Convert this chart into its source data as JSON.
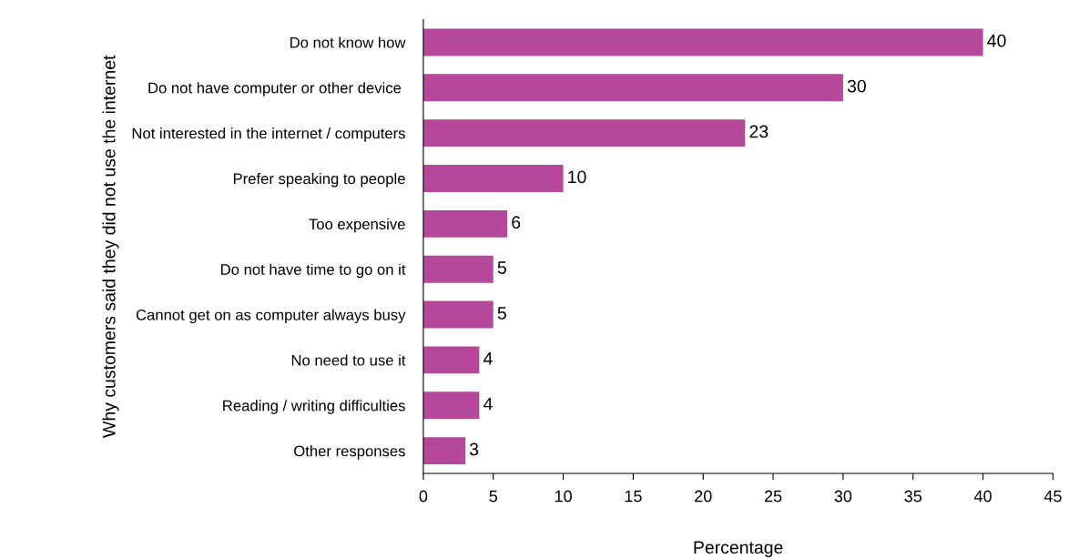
{
  "chart_data": {
    "type": "bar",
    "orientation": "horizontal",
    "xlabel": "Percentage",
    "ylabel": "Why customers said they did not use the internet",
    "categories": [
      "Do not know how",
      "Do not have computer or other device ",
      "Not interested in the internet / computers",
      "Prefer speaking to people",
      "Too expensive",
      "Do not have time to go on it",
      "Cannot get on as computer always busy",
      "No need to use it",
      "Reading / writing difficulties",
      "Other responses"
    ],
    "values": [
      40,
      30,
      23,
      10,
      6,
      5,
      5,
      4,
      4,
      3
    ],
    "color": "#b5489b",
    "data_labels": true,
    "grid": false,
    "legend": false,
    "xlim": [
      0,
      45
    ],
    "xticks": [
      0,
      5,
      10,
      15,
      20,
      25,
      30,
      35,
      40,
      45
    ]
  }
}
